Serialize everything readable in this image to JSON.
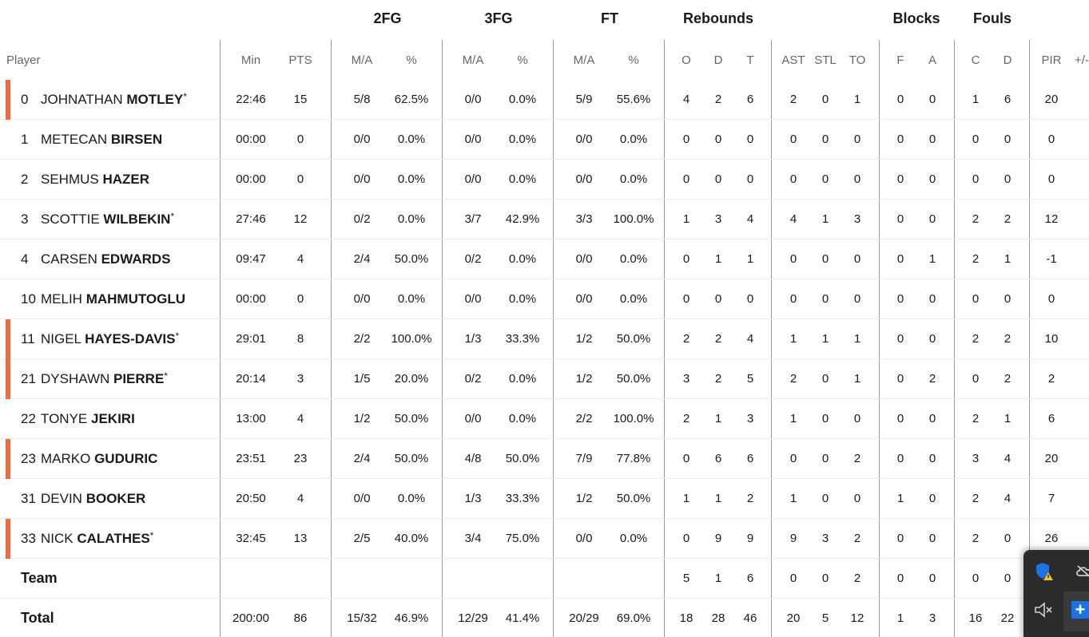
{
  "group_headers": {
    "fg2": "2FG",
    "fg3": "3FG",
    "ft": "FT",
    "rebounds": "Rebounds",
    "blocks": "Blocks",
    "fouls": "Fouls"
  },
  "columns": {
    "player": "Player",
    "min": "Min",
    "pts": "PTS",
    "fg2_ma": "M/A",
    "fg2_pct": "%",
    "fg3_ma": "M/A",
    "fg3_pct": "%",
    "ft_ma": "M/A",
    "ft_pct": "%",
    "reb_o": "O",
    "reb_d": "D",
    "reb_t": "T",
    "ast": "AST",
    "stl": "STL",
    "to": "TO",
    "blk_f": "F",
    "blk_a": "A",
    "fouls_c": "C",
    "fouls_d": "D",
    "pir": "PIR",
    "pm": "+/-"
  },
  "players": [
    {
      "num": "0",
      "first": "JOHNATHAN",
      "last": "MOTLEY",
      "star": "*",
      "starter": true,
      "min": "22:46",
      "pts": "15",
      "fg2_ma": "5/8",
      "fg2_pct": "62.5%",
      "fg3_ma": "0/0",
      "fg3_pct": "0.0%",
      "ft_ma": "5/9",
      "ft_pct": "55.6%",
      "o": "4",
      "d": "2",
      "t": "6",
      "ast": "2",
      "stl": "0",
      "to": "1",
      "bf": "0",
      "ba": "0",
      "fc": "1",
      "fd": "6",
      "pir": "20"
    },
    {
      "num": "1",
      "first": "METECAN",
      "last": "BIRSEN",
      "star": "",
      "starter": false,
      "min": "00:00",
      "pts": "0",
      "fg2_ma": "0/0",
      "fg2_pct": "0.0%",
      "fg3_ma": "0/0",
      "fg3_pct": "0.0%",
      "ft_ma": "0/0",
      "ft_pct": "0.0%",
      "o": "0",
      "d": "0",
      "t": "0",
      "ast": "0",
      "stl": "0",
      "to": "0",
      "bf": "0",
      "ba": "0",
      "fc": "0",
      "fd": "0",
      "pir": "0"
    },
    {
      "num": "2",
      "first": "SEHMUS",
      "last": "HAZER",
      "star": "",
      "starter": false,
      "min": "00:00",
      "pts": "0",
      "fg2_ma": "0/0",
      "fg2_pct": "0.0%",
      "fg3_ma": "0/0",
      "fg3_pct": "0.0%",
      "ft_ma": "0/0",
      "ft_pct": "0.0%",
      "o": "0",
      "d": "0",
      "t": "0",
      "ast": "0",
      "stl": "0",
      "to": "0",
      "bf": "0",
      "ba": "0",
      "fc": "0",
      "fd": "0",
      "pir": "0"
    },
    {
      "num": "3",
      "first": "SCOTTIE",
      "last": "WILBEKIN",
      "star": "*",
      "starter": false,
      "min": "27:46",
      "pts": "12",
      "fg2_ma": "0/2",
      "fg2_pct": "0.0%",
      "fg3_ma": "3/7",
      "fg3_pct": "42.9%",
      "ft_ma": "3/3",
      "ft_pct": "100.0%",
      "o": "1",
      "d": "3",
      "t": "4",
      "ast": "4",
      "stl": "1",
      "to": "3",
      "bf": "0",
      "ba": "0",
      "fc": "2",
      "fd": "2",
      "pir": "12"
    },
    {
      "num": "4",
      "first": "CARSEN",
      "last": "EDWARDS",
      "star": "",
      "starter": false,
      "min": "09:47",
      "pts": "4",
      "fg2_ma": "2/4",
      "fg2_pct": "50.0%",
      "fg3_ma": "0/2",
      "fg3_pct": "0.0%",
      "ft_ma": "0/0",
      "ft_pct": "0.0%",
      "o": "0",
      "d": "1",
      "t": "1",
      "ast": "0",
      "stl": "0",
      "to": "0",
      "bf": "0",
      "ba": "1",
      "fc": "2",
      "fd": "1",
      "pir": "-1"
    },
    {
      "num": "10",
      "first": "MELIH",
      "last": "MAHMUTOGLU",
      "star": "",
      "starter": false,
      "min": "00:00",
      "pts": "0",
      "fg2_ma": "0/0",
      "fg2_pct": "0.0%",
      "fg3_ma": "0/0",
      "fg3_pct": "0.0%",
      "ft_ma": "0/0",
      "ft_pct": "0.0%",
      "o": "0",
      "d": "0",
      "t": "0",
      "ast": "0",
      "stl": "0",
      "to": "0",
      "bf": "0",
      "ba": "0",
      "fc": "0",
      "fd": "0",
      "pir": "0"
    },
    {
      "num": "11",
      "first": "NIGEL",
      "last": "HAYES-DAVIS",
      "star": "*",
      "starter": true,
      "min": "29:01",
      "pts": "8",
      "fg2_ma": "2/2",
      "fg2_pct": "100.0%",
      "fg3_ma": "1/3",
      "fg3_pct": "33.3%",
      "ft_ma": "1/2",
      "ft_pct": "50.0%",
      "o": "2",
      "d": "2",
      "t": "4",
      "ast": "1",
      "stl": "1",
      "to": "1",
      "bf": "0",
      "ba": "0",
      "fc": "2",
      "fd": "2",
      "pir": "10"
    },
    {
      "num": "21",
      "first": "DYSHAWN",
      "last": "PIERRE",
      "star": "*",
      "starter": true,
      "min": "20:14",
      "pts": "3",
      "fg2_ma": "1/5",
      "fg2_pct": "20.0%",
      "fg3_ma": "0/2",
      "fg3_pct": "0.0%",
      "ft_ma": "1/2",
      "ft_pct": "50.0%",
      "o": "3",
      "d": "2",
      "t": "5",
      "ast": "2",
      "stl": "0",
      "to": "1",
      "bf": "0",
      "ba": "2",
      "fc": "0",
      "fd": "2",
      "pir": "2"
    },
    {
      "num": "22",
      "first": "TONYE",
      "last": "JEKIRI",
      "star": "",
      "starter": false,
      "min": "13:00",
      "pts": "4",
      "fg2_ma": "1/2",
      "fg2_pct": "50.0%",
      "fg3_ma": "0/0",
      "fg3_pct": "0.0%",
      "ft_ma": "2/2",
      "ft_pct": "100.0%",
      "o": "2",
      "d": "1",
      "t": "3",
      "ast": "1",
      "stl": "0",
      "to": "0",
      "bf": "0",
      "ba": "0",
      "fc": "2",
      "fd": "1",
      "pir": "6"
    },
    {
      "num": "23",
      "first": "MARKO",
      "last": "GUDURIC",
      "star": "",
      "starter": true,
      "min": "23:51",
      "pts": "23",
      "fg2_ma": "2/4",
      "fg2_pct": "50.0%",
      "fg3_ma": "4/8",
      "fg3_pct": "50.0%",
      "ft_ma": "7/9",
      "ft_pct": "77.8%",
      "o": "0",
      "d": "6",
      "t": "6",
      "ast": "0",
      "stl": "0",
      "to": "2",
      "bf": "0",
      "ba": "0",
      "fc": "3",
      "fd": "4",
      "pir": "20"
    },
    {
      "num": "31",
      "first": "DEVIN",
      "last": "BOOKER",
      "star": "",
      "starter": false,
      "min": "20:50",
      "pts": "4",
      "fg2_ma": "0/0",
      "fg2_pct": "0.0%",
      "fg3_ma": "1/3",
      "fg3_pct": "33.3%",
      "ft_ma": "1/2",
      "ft_pct": "50.0%",
      "o": "1",
      "d": "1",
      "t": "2",
      "ast": "1",
      "stl": "0",
      "to": "0",
      "bf": "1",
      "ba": "0",
      "fc": "2",
      "fd": "4",
      "pir": "7"
    },
    {
      "num": "33",
      "first": "NICK",
      "last": "CALATHES",
      "star": "*",
      "starter": true,
      "min": "32:45",
      "pts": "13",
      "fg2_ma": "2/5",
      "fg2_pct": "40.0%",
      "fg3_ma": "3/4",
      "fg3_pct": "75.0%",
      "ft_ma": "0/0",
      "ft_pct": "0.0%",
      "o": "0",
      "d": "9",
      "t": "9",
      "ast": "9",
      "stl": "3",
      "to": "2",
      "bf": "0",
      "ba": "0",
      "fc": "2",
      "fd": "0",
      "pir": "26"
    }
  ],
  "team": {
    "label": "Team",
    "o": "5",
    "d": "1",
    "t": "6",
    "ast": "0",
    "stl": "0",
    "to": "2",
    "bf": "0",
    "ba": "0",
    "fc": "0",
    "fd": "0"
  },
  "total": {
    "label": "Total",
    "min": "200:00",
    "pts": "86",
    "fg2_ma": "15/32",
    "fg2_pct": "46.9%",
    "fg3_ma": "12/29",
    "fg3_pct": "41.4%",
    "ft_ma": "20/29",
    "ft_pct": "69.0%",
    "o": "18",
    "d": "28",
    "t": "46",
    "ast": "20",
    "stl": "5",
    "to": "12",
    "bf": "1",
    "ba": "3",
    "fc": "16",
    "fd": "22"
  },
  "colors": {
    "starter_accent": "#f26b3a",
    "divider": "#9a9a9a",
    "tray_bg": "#2b2b2b",
    "tray_button": "#1a73e8"
  },
  "tray": {
    "icons": [
      "defender-shield-warning-icon",
      "cloud-icon",
      "speaker-muted-icon",
      "plus-icon"
    ]
  }
}
